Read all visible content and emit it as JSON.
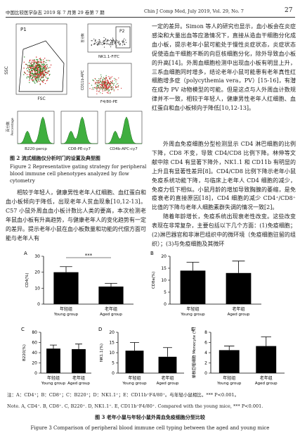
{
  "header": {
    "journal_cn": "中国比较医学杂志 2019 年 7 月第 29 卷第 7 期",
    "journal_en": "Chin J Comp Med, July 2019, Vol. 29, No. 7",
    "page": "27"
  },
  "figure2": {
    "labels": {
      "p1": "P1",
      "p2": "P2",
      "ssc": "SSC",
      "fsc": "FSC",
      "nk": "NK1.1-FITC",
      "cd11b": "CD11b-APC",
      "f480": "F4/80-PE",
      "b220": "B220-percp",
      "cd8": "CD8-PE-cy7",
      "cd4": "CD4b-APC-cy7",
      "pct_cn": "百分数",
      "pct_en": "Percentage"
    },
    "caption_cn": "图 2  流式细胞仪分析时门的设置及典型图",
    "caption_en": "Figure 2  Representative gating strategy for peripheral blood immune cell phenotypes analyzed by flow cytometry"
  },
  "body": {
    "left": [
      "相较于年轻人，健康男性老年人红细胞、血红蛋白和血小板倾向于降低，出现老年人贫血现象[10,12-13]。C57 小鼠外周血血小板计数比人类的要高，本次检测老年鼠血小板有升高趋势，与健康老年人的变化趋势有一定的差异。提示老年小鼠在血小板数量和功能的代偿方面可能与老年人有"
    ],
    "right": [
      "一定的差异。Simon 等人的研究也显示，血小板会在炎症感染和大量出血等应激情况下，直接从造血干细胞分化成血小板，提示老年小鼠可能处于慢性炎症状态，炎症状态促使造血干细胞不断的向巨核细胞分化，除外导致血小板的升高[14]。外周血细胞检测中出现血小板有明显上升，三系血细胞同时增多，结论老年小鼠可能患有老年真性红细胞增多症（polycythemia vera，PV）[15-16]，有潜在成为 PV 动物模型的可能。但是这点与人外周血计数规律并不一致，相较于年轻人，健康男性老年人红细胞、血红蛋白和血小板倾向于降低[10,12-13]。",
      "外周血免疫细胞分型检测显示 CD4 淋巴细胞的比例下降，CD8 不变，导致 CD4/CD8 比例下降。林伸等文献中除 CD4 有显著下降外，NK1.1 和 CD11b 有明显的上升且有显著性差异[8]。CD4/CD8 比例下降示老年小鼠免疫系统功能下降，与临床上老年人 CD4 细胞的减少，免疫力低下相似。小鼠月龄的增加导致胸腺的萎缩，是免疫衰老的直接原因[18]，CD4 细胞的减少 CD4⁺/CD8⁺比值的下降与老年人细胞素群失调的情况一致[2]。",
      "随着年龄增长，免疫系统出现衰老性改变。这些改变表现在非常复杂，主要包括以下几个方面：(1)免疫细胞；(2)淋巴器官和非淋巴组织中的微环境（免疫细胞驻留的组织）；(3)与免疫细胞及其微环"
    ]
  },
  "figure3": {
    "categories": [
      [
        "年轻组",
        "Young group"
      ],
      [
        "老年组",
        "Aged group"
      ]
    ],
    "panels": [
      {
        "type": "bar",
        "label": "A",
        "ylabel": "CD4(%)",
        "values": [
          20,
          11
        ],
        "errors": [
          3.5,
          2
        ],
        "color": "#000000",
        "ylim": [
          0,
          30
        ],
        "yticks": [
          0,
          10,
          20,
          30
        ],
        "significance": "***"
      },
      {
        "type": "bar",
        "label": "B",
        "ylabel": "CD8a(%)",
        "values": [
          14,
          13
        ],
        "errors": [
          3.5,
          5
        ],
        "color": "#000000",
        "ylim": [
          0,
          20
        ],
        "yticks": [
          0,
          5,
          10,
          15,
          20
        ]
      },
      {
        "type": "bar",
        "label": "C",
        "ylabel": "B220(%)",
        "values": [
          48,
          47
        ],
        "errors": [
          7,
          10
        ],
        "color": "#000000",
        "ylim": [
          0,
          80
        ],
        "yticks": [
          0,
          20,
          40,
          60,
          80
        ]
      },
      {
        "type": "bar",
        "label": "D",
        "ylabel": "NK1.1(%)",
        "values": [
          11,
          8
        ],
        "errors": [
          4,
          4.5
        ],
        "color": "#000000",
        "ylim": [
          0,
          20
        ],
        "yticks": [
          0,
          5,
          10,
          15,
          20
        ]
      },
      {
        "type": "bar",
        "label": "E",
        "ylabel": "单核巨噬细胞 Monocyte (%)",
        "values": [
          4.5,
          5.3
        ],
        "errors": [
          0.8,
          1.8
        ],
        "color": "#000000",
        "ylim": [
          0,
          8
        ],
        "yticks": [
          0,
          2,
          4,
          6,
          8
        ]
      }
    ],
    "note_cn": "注：A：CD4⁺；B：CD8⁺；C：B220⁺；D：NK1.1⁺；E：CD11b⁺F4/80⁺。与年轻小鼠相比，*** P<0.001。",
    "note_en": "Note. A, CD4⁺. B, CD8⁺. C, B220⁺. D, NK1.1⁺. E, CD11b⁺F4/80⁺. Compared with the young mice, *** P<0.001.",
    "caption_cn": "图 3  老年小鼠与年轻小鼠外周血免疫细胞分型比较",
    "caption_en": "Figure 3  Comparison of peripheral blood immune cell typing between the aged and young mice"
  }
}
